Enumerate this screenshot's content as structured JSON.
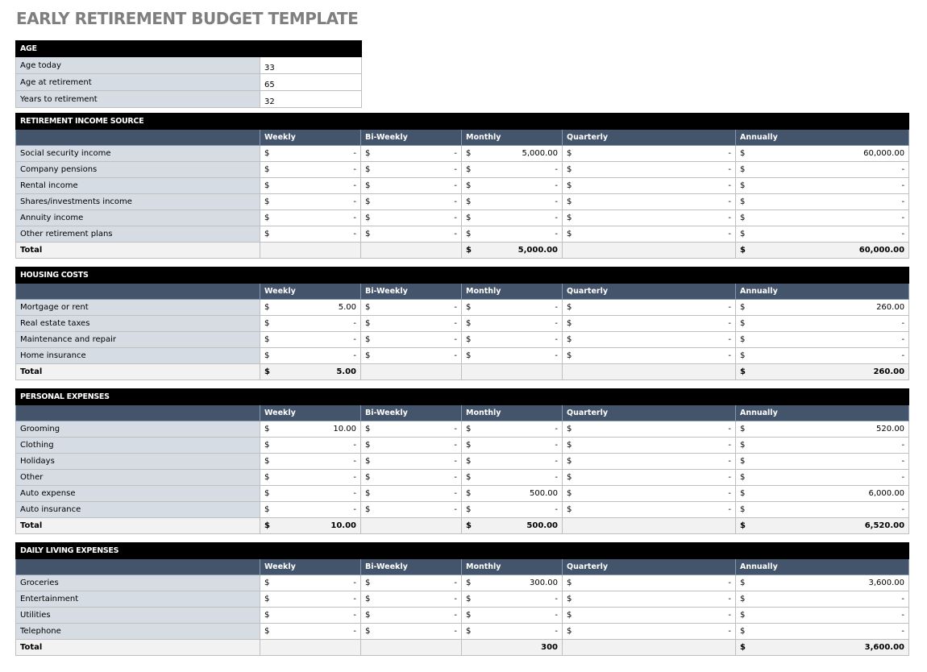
{
  "title": "EARLY RETIREMENT BUDGET TEMPLATE",
  "currency_symbol": "$",
  "age": {
    "heading": "AGE",
    "rows": [
      {
        "label": "Age today",
        "value": "33"
      },
      {
        "label": "Age at retirement",
        "value": "65"
      },
      {
        "label": "Years to retirement",
        "value": "32"
      }
    ]
  },
  "columns": [
    "Weekly",
    "Bi-Weekly",
    "Monthly",
    "Quarterly",
    "Annually"
  ],
  "sections": [
    {
      "heading": "RETIREMENT INCOME SOURCE",
      "rows": [
        {
          "label": "Social security income",
          "values": [
            "-",
            "-",
            "5,000.00",
            "-",
            "60,000.00"
          ]
        },
        {
          "label": "Company pensions",
          "values": [
            "-",
            "-",
            "-",
            "-",
            "-"
          ]
        },
        {
          "label": "Rental income",
          "values": [
            "-",
            "-",
            "-",
            "-",
            "-"
          ]
        },
        {
          "label": "Shares/investments income",
          "values": [
            "-",
            "-",
            "-",
            "-",
            "-"
          ]
        },
        {
          "label": "Annuity income",
          "values": [
            "-",
            "-",
            "-",
            "-",
            "-"
          ]
        },
        {
          "label": "Other retirement plans",
          "values": [
            "-",
            "-",
            "-",
            "-",
            "-"
          ]
        }
      ],
      "total_label": "Total",
      "total_values": [
        "",
        "",
        "5,000.00",
        "",
        "60,000.00"
      ],
      "total_currency": [
        false,
        false,
        true,
        false,
        true
      ]
    },
    {
      "heading": "HOUSING COSTS",
      "rows": [
        {
          "label": "Mortgage or rent",
          "values": [
            "5.00",
            "-",
            "-",
            "-",
            "260.00"
          ]
        },
        {
          "label": "Real estate taxes",
          "values": [
            "-",
            "-",
            "-",
            "-",
            "-"
          ]
        },
        {
          "label": "Maintenance and repair",
          "values": [
            "-",
            "-",
            "-",
            "-",
            "-"
          ]
        },
        {
          "label": "Home insurance",
          "values": [
            "-",
            "-",
            "-",
            "-",
            "-"
          ]
        }
      ],
      "total_label": "Total",
      "total_values": [
        "5.00",
        "",
        "",
        "",
        "260.00"
      ],
      "total_currency": [
        true,
        false,
        false,
        false,
        true
      ]
    },
    {
      "heading": "PERSONAL EXPENSES",
      "rows": [
        {
          "label": "Grooming",
          "values": [
            "10.00",
            "-",
            "-",
            "-",
            "520.00"
          ]
        },
        {
          "label": "Clothing",
          "values": [
            "-",
            "-",
            "-",
            "-",
            "-"
          ]
        },
        {
          "label": "Holidays",
          "values": [
            "-",
            "-",
            "-",
            "-",
            "-"
          ]
        },
        {
          "label": "Other",
          "values": [
            "-",
            "-",
            "-",
            "-",
            "-"
          ]
        },
        {
          "label": "Auto expense",
          "values": [
            "-",
            "-",
            "500.00",
            "-",
            "6,000.00"
          ]
        },
        {
          "label": "Auto insurance",
          "values": [
            "-",
            "-",
            "-",
            "-",
            "-"
          ]
        }
      ],
      "total_label": "Total",
      "total_values": [
        "10.00",
        "",
        "500.00",
        "",
        "6,520.00"
      ],
      "total_currency": [
        true,
        false,
        true,
        false,
        true
      ]
    },
    {
      "heading": "DAILY LIVING EXPENSES",
      "rows": [
        {
          "label": "Groceries",
          "values": [
            "-",
            "-",
            "300.00",
            "-",
            "3,600.00"
          ]
        },
        {
          "label": "Entertainment",
          "values": [
            "-",
            "-",
            "-",
            "-",
            "-"
          ]
        },
        {
          "label": "Utilities",
          "values": [
            "-",
            "-",
            "-",
            "-",
            "-"
          ]
        },
        {
          "label": "Telephone",
          "values": [
            "-",
            "-",
            "-",
            "-",
            "-"
          ]
        }
      ],
      "total_label": "Total",
      "total_values": [
        "",
        "",
        "300",
        "",
        "3,600.00"
      ],
      "total_currency": [
        false,
        false,
        false,
        false,
        true
      ]
    }
  ],
  "colors": {
    "section_header": "#000000",
    "column_header": "#44546a",
    "label_fill": "#d6dce4",
    "total_fill": "#f2f2f2",
    "title": "#7f7f7f"
  }
}
